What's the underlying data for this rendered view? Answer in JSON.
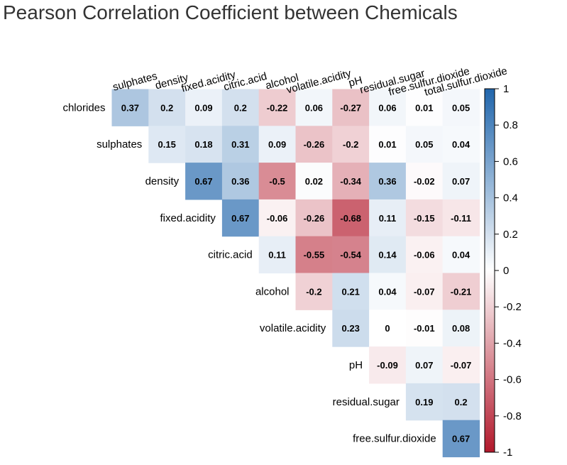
{
  "chart_data": {
    "type": "heatmap",
    "title": "Pearson Correlation Coefficient between Chemicals",
    "row_labels": [
      "chlorides",
      "sulphates",
      "density",
      "fixed.acidity",
      "citric.acid",
      "alcohol",
      "volatile.acidity",
      "pH",
      "residual.sugar",
      "free.sulfur.dioxide"
    ],
    "col_labels": [
      "sulphates",
      "density",
      "fixed.acidity",
      "citric.acid",
      "alcohol",
      "volatile.acidity",
      "pH",
      "residual.sugar",
      "free.sulfur.dioxide",
      "total.sulfur.dioxide"
    ],
    "values": [
      [
        0.37,
        0.2,
        0.09,
        0.2,
        -0.22,
        0.06,
        -0.27,
        0.06,
        0.01,
        0.05
      ],
      [
        null,
        0.15,
        0.18,
        0.31,
        0.09,
        -0.26,
        -0.2,
        0.01,
        0.05,
        0.04
      ],
      [
        null,
        null,
        0.67,
        0.36,
        -0.5,
        0.02,
        -0.34,
        0.36,
        -0.02,
        0.07
      ],
      [
        null,
        null,
        null,
        0.67,
        -0.06,
        -0.26,
        -0.68,
        0.11,
        -0.15,
        -0.11
      ],
      [
        null,
        null,
        null,
        null,
        0.11,
        -0.55,
        -0.54,
        0.14,
        -0.06,
        0.04
      ],
      [
        null,
        null,
        null,
        null,
        null,
        -0.2,
        0.21,
        0.04,
        -0.07,
        -0.21
      ],
      [
        null,
        null,
        null,
        null,
        null,
        null,
        0.23,
        0,
        -0.01,
        0.08
      ],
      [
        null,
        null,
        null,
        null,
        null,
        null,
        null,
        -0.09,
        0.07,
        -0.07
      ],
      [
        null,
        null,
        null,
        null,
        null,
        null,
        null,
        null,
        0.19,
        0.2
      ],
      [
        null,
        null,
        null,
        null,
        null,
        null,
        null,
        null,
        null,
        0.67
      ]
    ],
    "color_scale": {
      "min": -1,
      "mid": 0,
      "max": 1,
      "low_color": "#B2182B",
      "mid_color": "#FFFFFF",
      "high_color": "#2166AC"
    },
    "colorbar_ticks": [
      1,
      0.8,
      0.6,
      0.4,
      0.2,
      0,
      -0.2,
      -0.4,
      -0.6,
      -0.8,
      -1
    ],
    "colorbar_tick_labels": [
      "1",
      "0.8",
      "0.6",
      "0.4",
      "0.2",
      "0",
      "-0.2",
      "-0.4",
      "-0.6",
      "-0.8",
      "-1"
    ],
    "legend_placement": "right"
  }
}
